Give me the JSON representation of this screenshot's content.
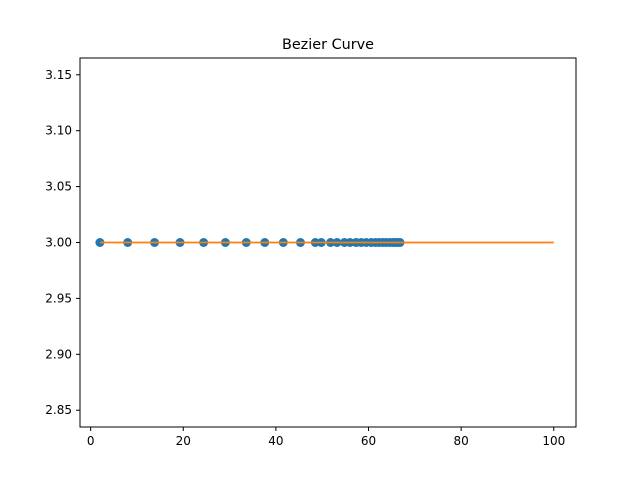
{
  "chart_data": {
    "type": "scatter",
    "title": "Bezier Curve",
    "xlabel": "",
    "ylabel": "",
    "xlim": [
      -2.3,
      104.8
    ],
    "ylim": [
      2.835,
      3.165
    ],
    "xticks": [
      0,
      20,
      40,
      60,
      80,
      100
    ],
    "yticks": [
      2.85,
      2.9,
      2.95,
      3.0,
      3.05,
      3.1,
      3.15
    ],
    "ytick_labels": [
      "2.85",
      "2.90",
      "2.95",
      "3.00",
      "3.05",
      "3.10",
      "3.15"
    ],
    "grid": false,
    "legend": "none",
    "series": [
      {
        "kind": "scatter",
        "color": "#1f77b4",
        "x": [
          2,
          8,
          13.8,
          19.3,
          24.4,
          29.1,
          33.6,
          37.6,
          41.6,
          45.3,
          48.5,
          49.8,
          51.8,
          53.2,
          54.8,
          56,
          57.3,
          58.4,
          59.5,
          60.6,
          61.5,
          62.3,
          63.1,
          63.8,
          64.6,
          65.2,
          65.8,
          66.3,
          66.8
        ],
        "y": [
          3,
          3,
          3,
          3,
          3,
          3,
          3,
          3,
          3,
          3,
          3,
          3,
          3,
          3,
          3,
          3,
          3,
          3,
          3,
          3,
          3,
          3,
          3,
          3,
          3,
          3,
          3,
          3,
          3
        ]
      },
      {
        "kind": "line",
        "color": "#ff7f0e",
        "x": [
          2,
          100
        ],
        "y": [
          3,
          3
        ]
      }
    ]
  }
}
